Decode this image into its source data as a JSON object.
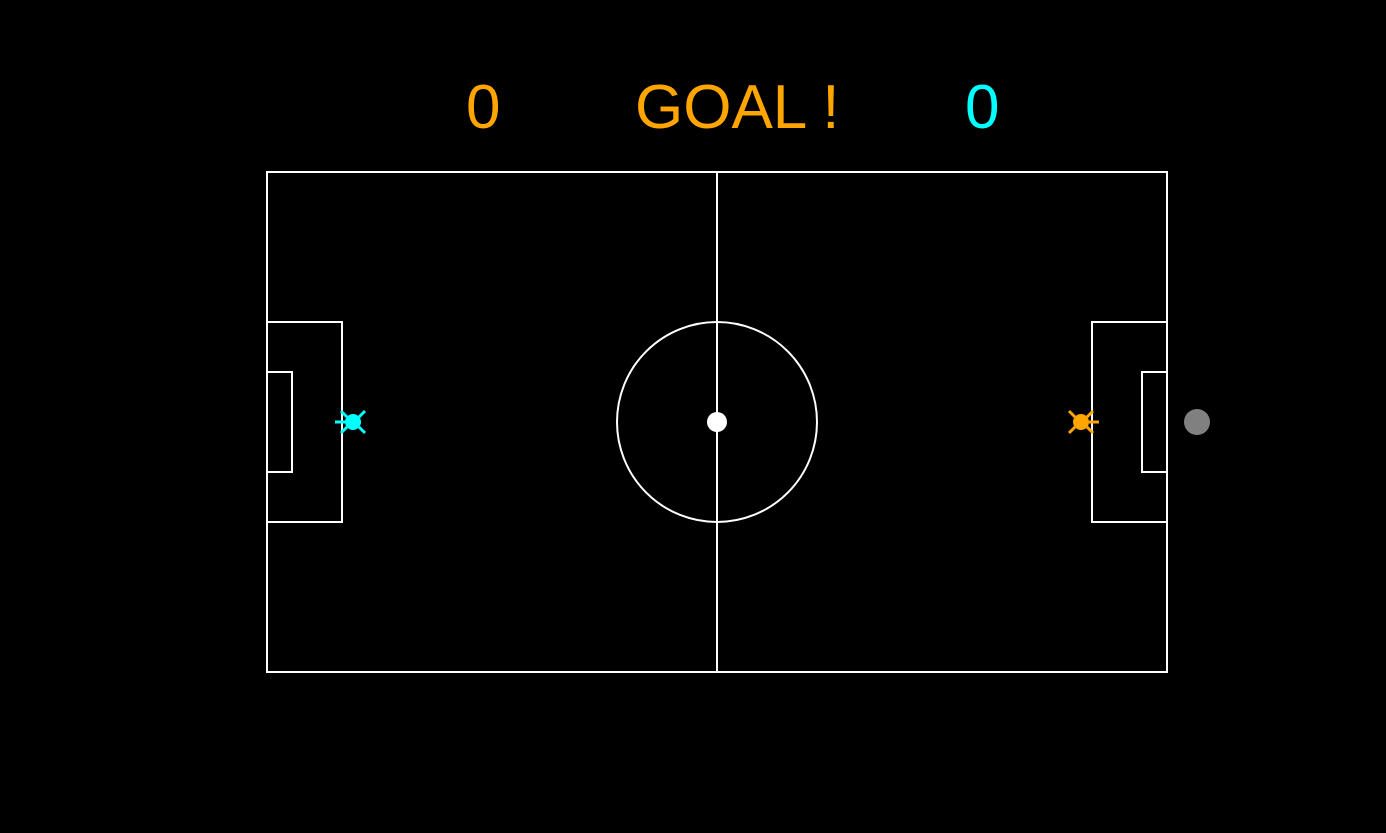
{
  "scoreboard": {
    "left_score": "0",
    "right_score": "0",
    "message": "GOAL !"
  },
  "colors": {
    "background": "#000000",
    "field_lines": "#ffffff",
    "left_team": "#ffa500",
    "right_team": "#00ffff",
    "ball": "#ffffff",
    "inactive_ball": "#808080"
  },
  "players": [
    {
      "team": "cyan",
      "side": "left",
      "icon": "robot-player-cyan-icon"
    },
    {
      "team": "orange",
      "side": "right",
      "icon": "robot-player-orange-icon"
    }
  ],
  "balls": [
    {
      "state": "center-spot",
      "icon": "ball-icon"
    },
    {
      "state": "out-of-play",
      "icon": "grey-ball-icon"
    }
  ]
}
